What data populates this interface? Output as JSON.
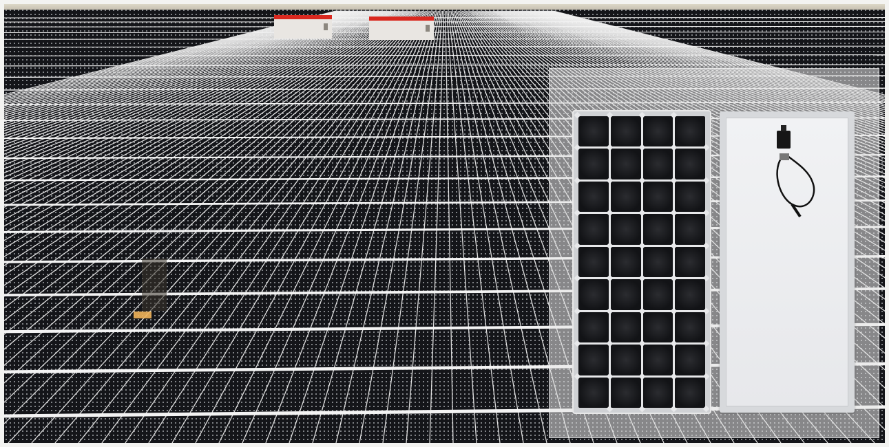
{
  "image": {
    "subject": "solar-farm-with-panel-product-overlay"
  },
  "colors": {
    "panel_cell": "#141519",
    "grid_line": "#f2f2f2",
    "roof_red": "#d9281f",
    "overlay_bg": "#e6e6e6",
    "backsheet": "#eeeff1"
  },
  "icons": {
    "junction_box": "junction-box-icon",
    "cable": "cable-icon"
  }
}
